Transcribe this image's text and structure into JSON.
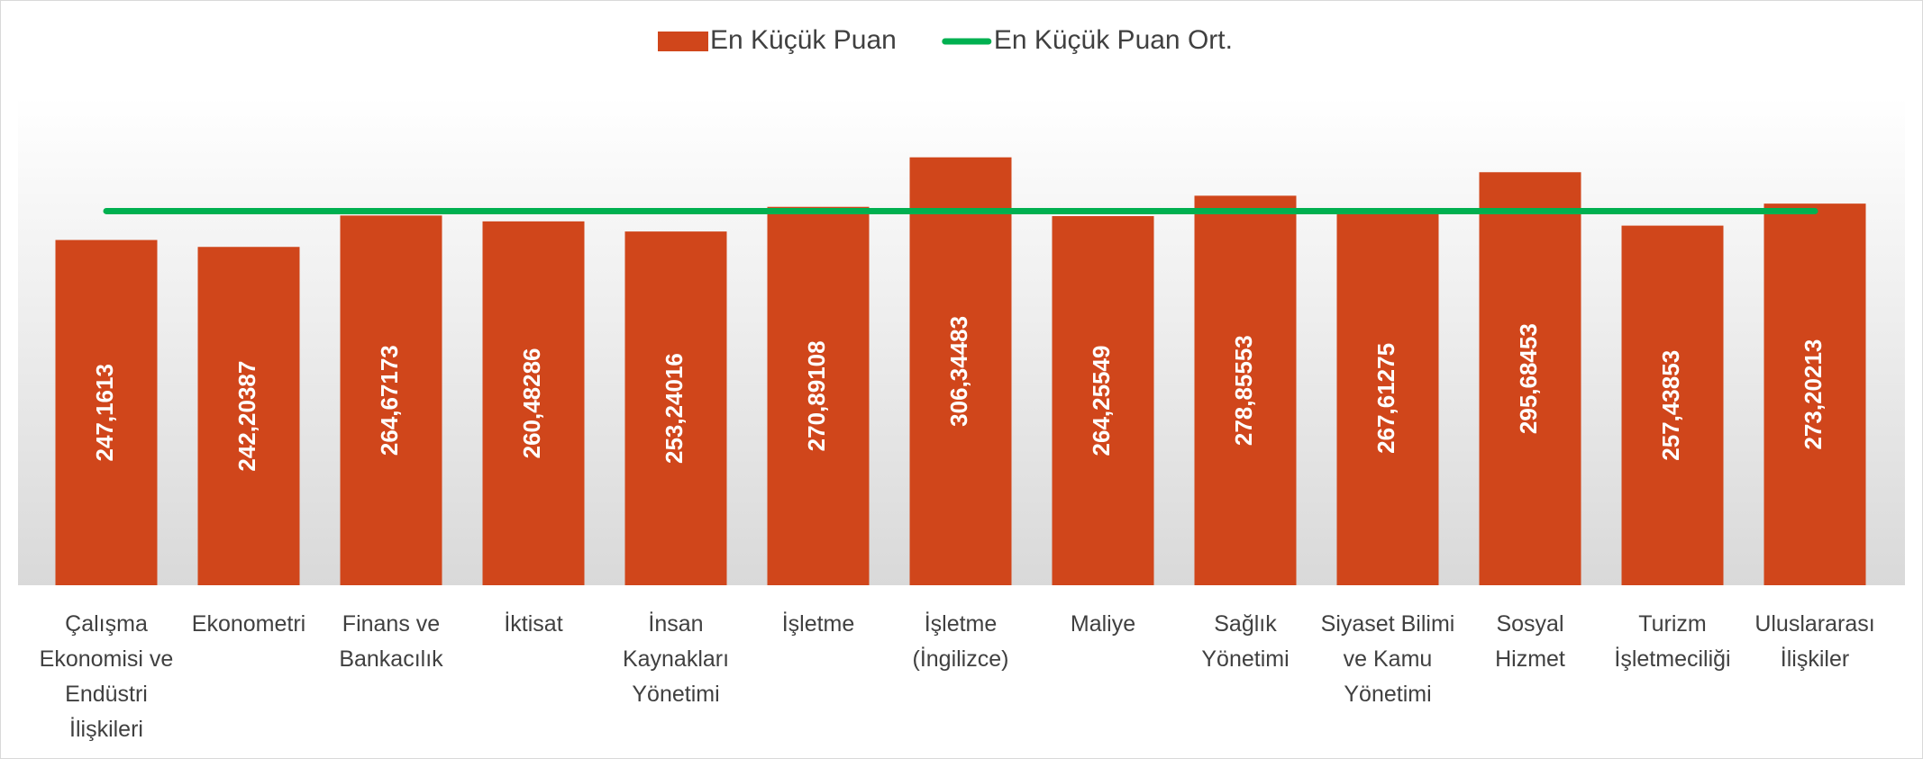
{
  "chart_data": {
    "type": "bar",
    "categories": [
      "Çalışma Ekonomisi ve Endüstri İlişkileri",
      "Ekonometri",
      "Finans ve Bankacılık",
      "İktisat",
      "İnsan Kaynakları Yönetimi",
      "İşletme",
      "İşletme (İngilizce)",
      "Maliye",
      "Sağlık Yönetimi",
      "Siyaset Bilimi ve Kamu Yönetimi",
      "Sosyal Hizmet",
      "Turizm İşletmeciliği",
      "Uluslararası İlişkiler"
    ],
    "series": [
      {
        "name": "En Küçük Puan",
        "type": "bar",
        "color": "#d0461b",
        "values": [
          247.1613,
          242.20387,
          264.67173,
          260.48286,
          253.24016,
          270.89108,
          306.34483,
          264.25549,
          278.85553,
          267.61275,
          295.68453,
          257.43853,
          273.20213
        ],
        "value_labels": [
          "247,1613",
          "242,20387",
          "264,67173",
          "260,48286",
          "253,24016",
          "270,89108",
          "306,34483",
          "264,25549",
          "278,85553",
          "267,61275",
          "295,68453",
          "257,43853",
          "273,20213"
        ]
      },
      {
        "name": "En Küçük Puan Ort.",
        "type": "line",
        "color": "#00b050",
        "values": [
          267.85,
          267.85,
          267.85,
          267.85,
          267.85,
          267.85,
          267.85,
          267.85,
          267.85,
          267.85,
          267.85,
          267.85,
          267.85
        ]
      }
    ],
    "ylim": [
      0,
      350
    ],
    "legend": "top"
  }
}
